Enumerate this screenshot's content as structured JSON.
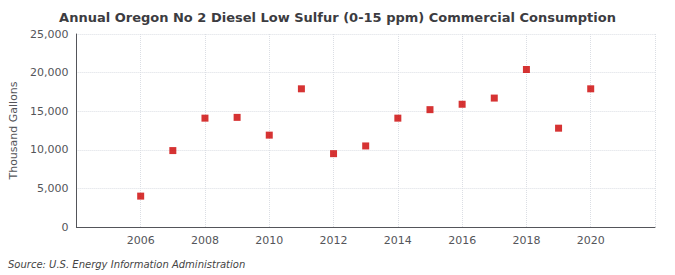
{
  "chart_data": {
    "type": "scatter",
    "title": "Annual Oregon No 2 Diesel Low Sulfur (0-15 ppm) Commercial Consumption",
    "ylabel": "Thousand Gallons",
    "annotation": "Source: U.S. Energy Information Administration",
    "x": [
      2006,
      2007,
      2008,
      2009,
      2010,
      2011,
      2012,
      2013,
      2014,
      2015,
      2016,
      2017,
      2018,
      2019,
      2020
    ],
    "values": [
      4000,
      9900,
      14100,
      14200,
      11900,
      17900,
      9500,
      10500,
      14100,
      15200,
      15900,
      16700,
      20400,
      12800,
      17900
    ],
    "color": "#cc0000",
    "marker": "square",
    "xlim": [
      2004,
      2022
    ],
    "xticks": [
      2006,
      2008,
      2010,
      2012,
      2014,
      2016,
      2018,
      2020
    ],
    "ylim": [
      0,
      25000
    ],
    "yticks": [
      0,
      {
        "value": 5000,
        "label": "5,000"
      },
      {
        "value": 10000,
        "label": "10,000"
      },
      {
        "value": 15000,
        "label": "15,000"
      },
      {
        "value": 20000,
        "label": "20,000"
      },
      {
        "value": 25000,
        "label": "25,000"
      }
    ],
    "grid": true
  }
}
